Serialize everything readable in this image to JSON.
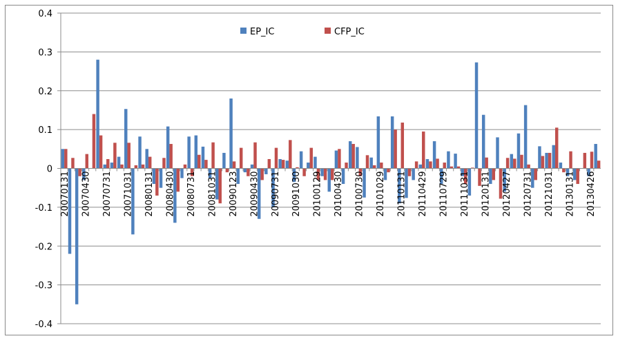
{
  "chart_data": {
    "type": "bar",
    "categories": [
      "20070131",
      null,
      null,
      "20070430",
      null,
      null,
      "20070731",
      null,
      null,
      "20071031",
      null,
      null,
      "20080131",
      null,
      null,
      "20080430",
      null,
      null,
      "20080731",
      null,
      null,
      "20081031",
      null,
      null,
      "20090123",
      null,
      null,
      "20090430",
      null,
      null,
      "20090731",
      null,
      null,
      "20091030",
      null,
      null,
      "20100129",
      null,
      null,
      "20100430",
      null,
      null,
      "20100730",
      null,
      null,
      "20101029",
      null,
      null,
      "20110131",
      null,
      null,
      "20110429",
      null,
      null,
      "20110729",
      null,
      null,
      "20111031",
      null,
      null,
      "20120131",
      null,
      null,
      "20120427",
      null,
      null,
      "20120731",
      null,
      null,
      "20121031",
      null,
      null,
      "20130131",
      null,
      null,
      "20130426",
      null
    ],
    "series": [
      {
        "name": "EP_IC",
        "color": "#4f81bd",
        "values": [
          0.05,
          -0.22,
          -0.35,
          -0.03,
          0.0,
          0.28,
          0.01,
          0.015,
          0.03,
          0.153,
          -0.17,
          0.082,
          0.05,
          -0.04,
          -0.05,
          0.108,
          -0.14,
          -0.025,
          0.082,
          0.085,
          0.056,
          -0.025,
          -0.08,
          0.04,
          0.18,
          -0.04,
          -0.01,
          0.01,
          -0.13,
          -0.015,
          -0.1,
          0.024,
          0.02,
          -0.035,
          0.044,
          0.015,
          0.03,
          -0.02,
          -0.06,
          0.046,
          -0.04,
          0.07,
          0.055,
          -0.075,
          0.028,
          0.134,
          -0.03,
          0.134,
          -0.09,
          -0.076,
          -0.03,
          0.01,
          0.024,
          0.07,
          -0.04,
          0.044,
          0.038,
          -0.02,
          -0.07,
          0.273,
          0.138,
          -0.04,
          0.08,
          -0.06,
          0.037,
          0.09,
          0.163,
          -0.05,
          0.057,
          0.04,
          0.06,
          0.015,
          -0.02,
          -0.03,
          0.0,
          -0.02,
          0.063
        ]
      },
      {
        "name": "CFP_IC",
        "color": "#c0504d",
        "values": [
          0.05,
          0.027,
          -0.02,
          0.037,
          0.14,
          0.085,
          0.024,
          0.066,
          0.01,
          0.066,
          0.008,
          0.01,
          0.03,
          -0.07,
          0.027,
          0.063,
          -0.06,
          0.01,
          -0.02,
          0.035,
          0.022,
          0.067,
          -0.09,
          -0.01,
          0.018,
          0.053,
          -0.02,
          0.067,
          -0.03,
          0.024,
          0.053,
          0.022,
          0.073,
          0.003,
          -0.02,
          0.053,
          -0.03,
          -0.03,
          -0.03,
          0.05,
          0.015,
          0.063,
          -0.02,
          0.034,
          0.008,
          0.015,
          -0.01,
          0.1,
          0.118,
          -0.02,
          0.018,
          0.095,
          0.018,
          0.025,
          0.015,
          0.005,
          0.005,
          -0.04,
          0.002,
          -0.045,
          0.028,
          -0.03,
          -0.078,
          0.027,
          0.025,
          0.035,
          0.01,
          -0.03,
          0.032,
          0.04,
          0.105,
          -0.01,
          0.044,
          -0.04,
          0.04,
          0.043,
          0.02
        ]
      }
    ],
    "ylim": [
      -0.4,
      0.4
    ],
    "yticks": [
      -0.4,
      -0.3,
      -0.2,
      -0.1,
      0,
      0.1,
      0.2,
      0.3,
      0.4
    ],
    "grid": true,
    "legend": "top"
  }
}
